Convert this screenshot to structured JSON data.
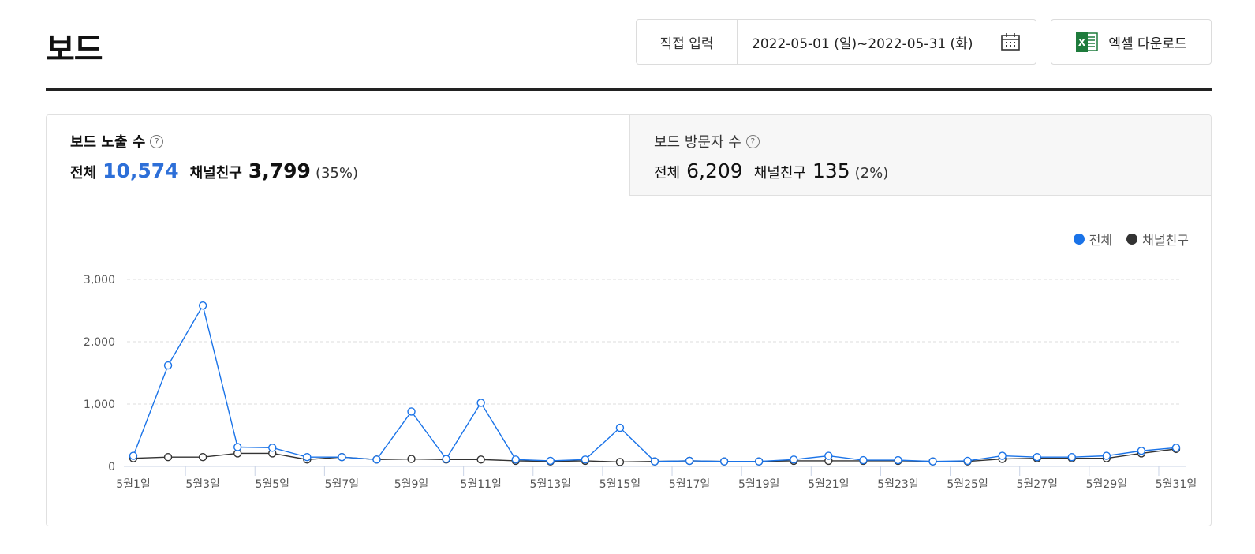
{
  "page": {
    "title": "보드"
  },
  "controls": {
    "direct_input_label": "직접 입력",
    "date_range": "2022-05-01 (일)~2022-05-31 (화)",
    "calendar_icon": "calendar-icon",
    "excel_label": "엑셀 다운로드",
    "excel_icon": "excel-icon"
  },
  "stats": {
    "impressions": {
      "title": "보드 노출 수",
      "total_label": "전체",
      "total_value": "10,574",
      "friend_label": "채널친구",
      "friend_value": "3,799",
      "friend_pct": "(35%)"
    },
    "visitors": {
      "title": "보드 방문자 수",
      "total_label": "전체",
      "total_value": "6,209",
      "friend_label": "채널친구",
      "friend_value": "135",
      "friend_pct": "(2%)"
    },
    "help_glyph": "?"
  },
  "legend": {
    "total": "전체",
    "friend": "채널친구"
  },
  "colors": {
    "total": "#1a73e8",
    "friend": "#333333",
    "accent": "#2d6fd8"
  },
  "chart_data": {
    "type": "line",
    "title": "",
    "xlabel": "",
    "ylabel": "",
    "ylim": [
      0,
      3000
    ],
    "yticks": [
      0,
      1000,
      2000,
      3000
    ],
    "ytick_labels": [
      "0",
      "1,000",
      "2,000",
      "3,000"
    ],
    "grid": true,
    "legend_position": "top-right",
    "categories": [
      "5월1일",
      "5월2일",
      "5월3일",
      "5월4일",
      "5월5일",
      "5월6일",
      "5월7일",
      "5월8일",
      "5월9일",
      "5월10일",
      "5월11일",
      "5월12일",
      "5월13일",
      "5월14일",
      "5월15일",
      "5월16일",
      "5월17일",
      "5월18일",
      "5월19일",
      "5월20일",
      "5월21일",
      "5월22일",
      "5월23일",
      "5월24일",
      "5월25일",
      "5월26일",
      "5월27일",
      "5월28일",
      "5월29일",
      "5월30일",
      "5월31일"
    ],
    "x_tick_labels": [
      "5월1일",
      "5월3일",
      "5월5일",
      "5월7일",
      "5월9일",
      "5월11일",
      "5월13일",
      "5월15일",
      "5월17일",
      "5월19일",
      "5월21일",
      "5월23일",
      "5월25일",
      "5월27일",
      "5월29일",
      "5월31일"
    ],
    "series": [
      {
        "name": "전체",
        "values": [
          170,
          1620,
          2580,
          310,
          300,
          150,
          150,
          110,
          880,
          120,
          1020,
          110,
          90,
          110,
          620,
          80,
          90,
          80,
          80,
          110,
          170,
          100,
          100,
          80,
          90,
          170,
          150,
          150,
          170,
          250,
          300
        ]
      },
      {
        "name": "채널친구",
        "values": [
          130,
          150,
          150,
          210,
          210,
          110,
          150,
          110,
          120,
          110,
          110,
          90,
          80,
          90,
          70,
          80,
          90,
          80,
          80,
          90,
          90,
          90,
          90,
          80,
          80,
          120,
          130,
          130,
          130,
          210,
          280
        ]
      }
    ]
  }
}
